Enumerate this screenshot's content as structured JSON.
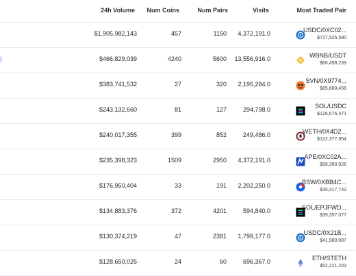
{
  "headers": {
    "volume": "24h Volume",
    "coins": "Num Coins",
    "pairs": "Num Pairs",
    "visits": "Visits",
    "most": "Most Traded Pair"
  },
  "edge_glyph": ")",
  "rows": [
    {
      "volume": "$1,905,982,143",
      "coins": "457",
      "pairs": "1150",
      "visits": "4,372,191.0",
      "pair": "USDC/0XC02...",
      "pair_volume": "$727,525,590",
      "icon": "usdc-icon",
      "icon_color": "#2775ca"
    },
    {
      "volume": "$466,829,039",
      "coins": "4240",
      "pairs": "5600",
      "visits": "13,556,916.0",
      "pair": "WBNB/USDT",
      "pair_volume": "$66,498,239",
      "icon": "bnb-icon",
      "icon_color": "#f3ba2f"
    },
    {
      "volume": "$383,741,532",
      "coins": "27",
      "pairs": "320",
      "visits": "2,195,284.0",
      "pair": "SVN/0X9774...",
      "pair_volume": "$85,660,456",
      "icon": "svn-icon",
      "icon_color": "#e8742a"
    },
    {
      "volume": "$243,132,660",
      "coins": "81",
      "pairs": "127",
      "visits": "294,798.0",
      "pair": "SOL/USDC",
      "pair_volume": "$126,676,471",
      "icon": "solana-icon",
      "icon_color": "#000000"
    },
    {
      "volume": "$240,017,355",
      "coins": "399",
      "pairs": "852",
      "visits": "249,486.0",
      "pair": "WETH/0X4D2...",
      "pair_volume": "$122,377,954",
      "icon": "weth-icon",
      "icon_color": "#8e1c2a"
    },
    {
      "volume": "$235,398,323",
      "coins": "1509",
      "pairs": "2950",
      "visits": "4,372,191.0",
      "pair": "APE/0XC02A...",
      "pair_volume": "$89,360,926",
      "icon": "ape-icon",
      "icon_color": "#1c4fc0"
    },
    {
      "volume": "$176,950,404",
      "coins": "33",
      "pairs": "191",
      "visits": "2,202,250.0",
      "pair": "BSW/0XBB4C...",
      "pair_volume": "$35,417,742",
      "icon": "bsw-icon",
      "icon_color": "#e83a3a"
    },
    {
      "volume": "$134,883,376",
      "coins": "372",
      "pairs": "4201",
      "visits": "594,840.0",
      "pair": "SOL/EPJFWD...",
      "pair_volume": "$39,357,077",
      "icon": "solana-icon",
      "icon_color": "#000000"
    },
    {
      "volume": "$130,374,219",
      "coins": "47",
      "pairs": "2381",
      "visits": "1,799,177.0",
      "pair": "USDC/0X21B...",
      "pair_volume": "$41,980,087",
      "icon": "usdc-icon",
      "icon_color": "#2775ca"
    },
    {
      "volume": "$128,650,025",
      "coins": "24",
      "pairs": "60",
      "visits": "696,367.0",
      "pair": "ETH/STETH",
      "pair_volume": "$52,221,203",
      "icon": "eth-icon",
      "icon_color": "#627eea"
    }
  ]
}
